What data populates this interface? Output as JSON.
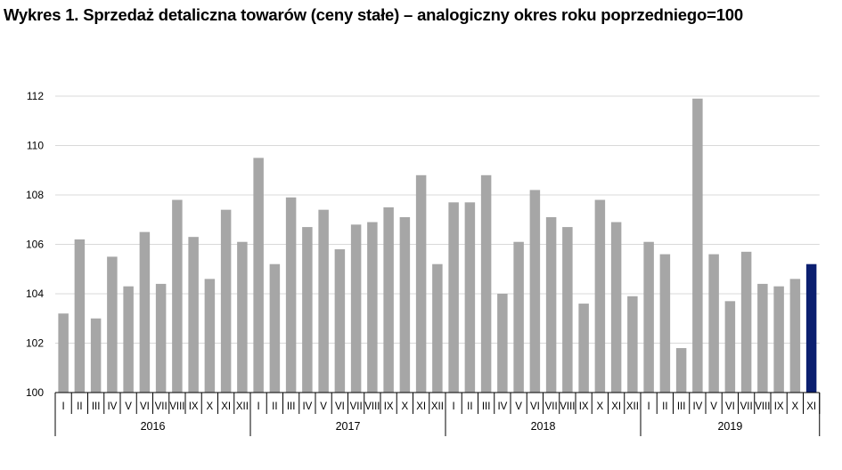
{
  "title": "Wykres 1. Sprzedaż detaliczna towarów (ceny stałe) – analogiczny okres roku poprzedniego=100",
  "chart_data": {
    "type": "bar",
    "title": "Wykres 1. Sprzedaż detaliczna towarów (ceny stałe) – analogiczny okres roku poprzedniego=100",
    "xlabel": "",
    "ylabel": "",
    "ylim": [
      100,
      112
    ],
    "yticks": [
      100,
      102,
      104,
      106,
      108,
      110,
      112
    ],
    "grid": true,
    "legend": "none",
    "colors": {
      "bar": "#a6a6a6",
      "highlight": "#0b1f70",
      "grid": "#d9d9d9",
      "axis": "#000000"
    },
    "years": [
      {
        "label": "2016",
        "months": 12
      },
      {
        "label": "2017",
        "months": 12
      },
      {
        "label": "2018",
        "months": 12
      },
      {
        "label": "2019",
        "months": 11
      }
    ],
    "categories": [
      "I",
      "II",
      "III",
      "IV",
      "V",
      "VI",
      "VII",
      "VIII",
      "IX",
      "X",
      "XI",
      "XII",
      "I",
      "II",
      "III",
      "IV",
      "V",
      "VI",
      "VII",
      "VIII",
      "IX",
      "X",
      "XI",
      "XII",
      "I",
      "II",
      "III",
      "IV",
      "V",
      "VI",
      "VII",
      "VIII",
      "IX",
      "X",
      "XI",
      "XII",
      "I",
      "II",
      "III",
      "IV",
      "V",
      "VI",
      "VII",
      "VIII",
      "IX",
      "X",
      "XI"
    ],
    "values": [
      103.2,
      106.2,
      103.0,
      105.5,
      104.3,
      106.5,
      104.4,
      107.8,
      106.3,
      104.6,
      107.4,
      106.1,
      109.5,
      105.2,
      107.9,
      106.7,
      107.4,
      105.8,
      106.8,
      106.9,
      107.5,
      107.1,
      108.8,
      105.2,
      107.7,
      107.7,
      108.8,
      104.0,
      106.1,
      108.2,
      107.1,
      106.7,
      103.6,
      107.8,
      106.9,
      103.9,
      106.1,
      105.6,
      101.8,
      111.9,
      105.6,
      103.7,
      105.7,
      104.4,
      104.3,
      104.6,
      105.2
    ],
    "highlight_index": 46
  }
}
